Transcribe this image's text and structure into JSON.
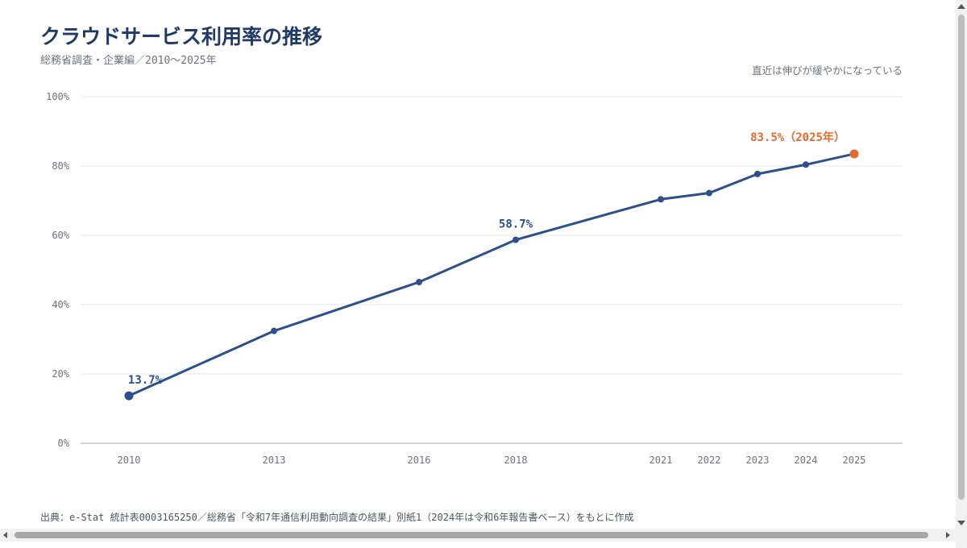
{
  "header": {
    "title": "クラウドサービス利用率の推移",
    "subtitle": "総務省調査・企業編／2010〜2025年",
    "note": "直近は伸びが緩やかになっている"
  },
  "footer": {
    "source": "出典：e-Stat 統計表0003165250／総務省「令和7年通信利用動向調査の結果」別紙1（2024年は令和6年報告書ベース）をもとに作成"
  },
  "colors": {
    "line": "#2d4f8a",
    "highlight": "#e8692d",
    "grid": "#e5e7eb",
    "axis": "#c3c8d0"
  },
  "chart_data": {
    "type": "line",
    "title": "クラウドサービス利用率の推移",
    "x": [
      2010,
      2013,
      2016,
      2018,
      2021,
      2022,
      2023,
      2024,
      2025
    ],
    "x_tick_labels": [
      "2010",
      "2013",
      "2016",
      "2018",
      "2021",
      "2022",
      "2023",
      "2024",
      "2025"
    ],
    "y": [
      13.7,
      32.4,
      46.5,
      58.7,
      70.4,
      72.2,
      77.7,
      80.4,
      83.5
    ],
    "y_ticks": [
      0,
      20,
      40,
      60,
      80,
      100
    ],
    "y_tick_labels": [
      "0%",
      "20%",
      "40%",
      "60%",
      "80%",
      "100%"
    ],
    "ylim": [
      0,
      100
    ],
    "xlim": [
      2010,
      2025
    ],
    "grid": true,
    "annotations": [
      {
        "x": 2010,
        "label": "13.7%"
      },
      {
        "x": 2018,
        "label": "58.7%"
      },
      {
        "x": 2025,
        "label": "83.5%（2025年）"
      }
    ]
  }
}
